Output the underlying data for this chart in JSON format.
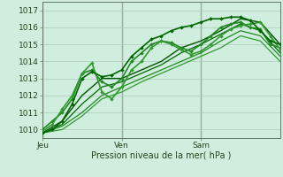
{
  "title": "",
  "xlabel": "Pression niveau de la mer( hPa )",
  "background_color": "#d0eedd",
  "grid_color": "#b0ccbb",
  "ylim": [
    1009.5,
    1017.5
  ],
  "xlim": [
    0,
    72
  ],
  "day_ticks": [
    0,
    24,
    48
  ],
  "day_labels": [
    "Jeu",
    "Ven",
    "Sam"
  ],
  "yticks": [
    1010,
    1011,
    1012,
    1013,
    1014,
    1015,
    1016,
    1017
  ],
  "series": [
    {
      "x": [
        0,
        3,
        6,
        9,
        12,
        15,
        18,
        21,
        24,
        27,
        30,
        33,
        36,
        39,
        42,
        45,
        48,
        51,
        54,
        57,
        60,
        63,
        66,
        69,
        72
      ],
      "y": [
        1010.0,
        1010.5,
        1011.0,
        1011.8,
        1013.3,
        1013.5,
        1012.8,
        1012.5,
        1013.0,
        1014.0,
        1014.5,
        1015.0,
        1015.2,
        1015.1,
        1014.8,
        1014.6,
        1015.0,
        1015.5,
        1016.0,
        1016.2,
        1016.3,
        1016.0,
        1015.9,
        1015.0,
        1014.8
      ],
      "color": "#228822",
      "lw": 1.2,
      "marker": "D",
      "ms": 2.0
    },
    {
      "x": [
        0,
        3,
        6,
        9,
        12,
        15,
        18,
        21,
        24,
        27,
        30,
        33,
        36,
        39,
        42,
        45,
        48,
        51,
        54,
        57,
        60,
        63,
        66,
        69,
        72
      ],
      "y": [
        1009.9,
        1010.3,
        1011.2,
        1012.0,
        1013.3,
        1013.9,
        1012.2,
        1011.8,
        1012.5,
        1013.5,
        1014.0,
        1014.8,
        1015.2,
        1015.0,
        1014.7,
        1014.4,
        1014.6,
        1015.0,
        1015.5,
        1015.9,
        1016.1,
        1016.2,
        1016.3,
        1015.5,
        1014.7
      ],
      "color": "#339933",
      "lw": 1.2,
      "marker": "D",
      "ms": 2.0
    },
    {
      "x": [
        0,
        3,
        6,
        9,
        12,
        15,
        18,
        21,
        24,
        27,
        30,
        33,
        36,
        39,
        42,
        45,
        48,
        51,
        54,
        57,
        60,
        63,
        66,
        69,
        72
      ],
      "y": [
        1009.8,
        1010.0,
        1010.5,
        1011.5,
        1013.0,
        1013.4,
        1013.1,
        1013.2,
        1013.5,
        1014.3,
        1014.8,
        1015.3,
        1015.5,
        1015.8,
        1016.0,
        1016.1,
        1016.3,
        1016.5,
        1016.5,
        1016.6,
        1016.6,
        1016.4,
        1015.8,
        1015.2,
        1015.0
      ],
      "color": "#006600",
      "lw": 1.2,
      "marker": "D",
      "ms": 2.0
    },
    {
      "x": [
        0,
        6,
        12,
        18,
        24,
        30,
        36,
        42,
        48,
        54,
        60,
        66,
        72
      ],
      "y": [
        1009.8,
        1010.5,
        1012.0,
        1013.0,
        1013.0,
        1013.5,
        1014.0,
        1014.8,
        1015.2,
        1015.8,
        1016.5,
        1016.3,
        1015.0
      ],
      "color": "#005500",
      "lw": 1.0,
      "marker": null,
      "ms": 0
    },
    {
      "x": [
        0,
        6,
        12,
        18,
        24,
        30,
        36,
        42,
        48,
        54,
        60,
        66,
        72
      ],
      "y": [
        1009.8,
        1010.3,
        1011.5,
        1012.5,
        1012.8,
        1013.3,
        1013.8,
        1014.5,
        1015.0,
        1015.6,
        1016.2,
        1015.8,
        1014.5
      ],
      "color": "#006600",
      "lw": 0.9,
      "marker": null,
      "ms": 0
    },
    {
      "x": [
        0,
        6,
        12,
        18,
        24,
        30,
        36,
        42,
        48,
        54,
        60,
        66,
        72
      ],
      "y": [
        1009.8,
        1010.2,
        1011.0,
        1012.0,
        1012.5,
        1013.0,
        1013.5,
        1014.0,
        1014.5,
        1015.2,
        1015.8,
        1015.5,
        1014.3
      ],
      "color": "#228822",
      "lw": 0.9,
      "marker": null,
      "ms": 0
    },
    {
      "x": [
        0,
        6,
        12,
        18,
        24,
        30,
        36,
        42,
        48,
        54,
        60,
        66,
        72
      ],
      "y": [
        1009.8,
        1010.0,
        1010.8,
        1011.8,
        1012.2,
        1012.8,
        1013.3,
        1013.8,
        1014.3,
        1014.8,
        1015.5,
        1015.2,
        1014.0
      ],
      "color": "#339933",
      "lw": 0.9,
      "marker": null,
      "ms": 0
    }
  ]
}
